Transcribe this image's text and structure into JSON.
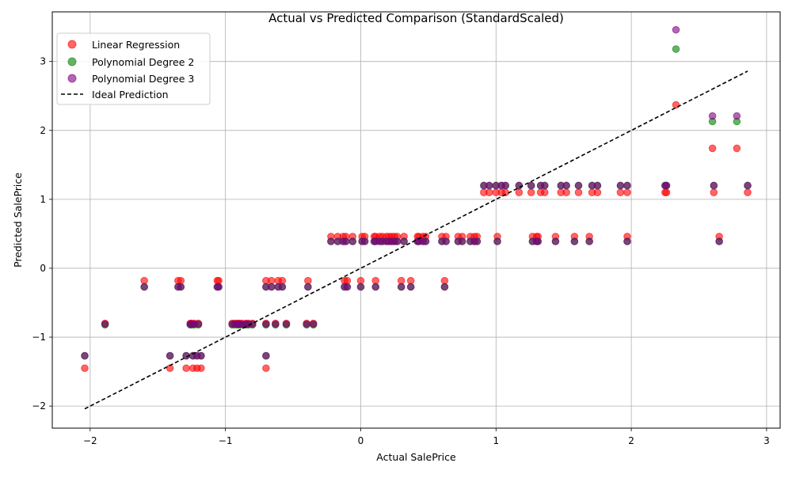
{
  "chart_data": {
    "type": "scatter",
    "title": "Actual vs Predicted Comparison (StandardScaled)",
    "xlabel": "Actual SalePrice",
    "ylabel": "Predicted SalePrice",
    "xlim": [
      -2.28,
      3.1
    ],
    "ylim": [
      -2.32,
      3.72
    ],
    "xticks": [
      -2,
      -1,
      0,
      1,
      2,
      3
    ],
    "xtick_labels": [
      "−2",
      "−1",
      "0",
      "1",
      "2",
      "3"
    ],
    "yticks": [
      -2,
      -1,
      0,
      1,
      2,
      3
    ],
    "ytick_labels": [
      "−2",
      "−1",
      "0",
      "1",
      "2",
      "3"
    ],
    "grid": true,
    "legend_position": "top-left",
    "actual_x": [
      -2.04,
      -1.89,
      -1.6,
      -1.41,
      -1.35,
      -1.33,
      -1.29,
      -1.26,
      -1.25,
      -1.24,
      -1.23,
      -1.21,
      -1.2,
      -1.18,
      -1.06,
      -1.05,
      -0.95,
      -0.93,
      -0.91,
      -0.9,
      -0.88,
      -0.85,
      -0.83,
      -0.8,
      -0.7,
      -0.7,
      -0.7,
      -0.66,
      -0.63,
      -0.61,
      -0.58,
      -0.55,
      -0.4,
      -0.39,
      -0.35,
      -0.22,
      -0.17,
      -0.13,
      -0.12,
      -0.11,
      -0.1,
      -0.06,
      0.0,
      0.01,
      0.03,
      0.1,
      0.11,
      0.11,
      0.14,
      0.16,
      0.19,
      0.21,
      0.23,
      0.25,
      0.27,
      0.3,
      0.32,
      0.37,
      0.42,
      0.43,
      0.46,
      0.48,
      0.6,
      0.62,
      0.63,
      0.72,
      0.75,
      0.81,
      0.84,
      0.86,
      0.91,
      0.95,
      1.0,
      1.01,
      1.04,
      1.07,
      1.17,
      1.26,
      1.27,
      1.3,
      1.31,
      1.33,
      1.36,
      1.44,
      1.48,
      1.52,
      1.58,
      1.61,
      1.69,
      1.71,
      1.75,
      1.92,
      1.97,
      1.97,
      2.25,
      2.26,
      2.33,
      2.6,
      2.61,
      2.65,
      2.78,
      2.86
    ],
    "series": [
      {
        "name": "Linear Regression",
        "color": "#ff0000",
        "y": [
          -1.45,
          -0.8,
          -0.18,
          -1.45,
          -0.18,
          -0.18,
          -1.45,
          -0.8,
          -0.8,
          -1.45,
          -0.8,
          -1.45,
          -0.8,
          -1.45,
          -0.18,
          -0.18,
          -0.8,
          -0.8,
          -0.8,
          -0.8,
          -0.8,
          -0.8,
          -0.8,
          -0.8,
          -1.45,
          -0.8,
          -0.18,
          -0.18,
          -0.8,
          -0.18,
          -0.18,
          -0.8,
          -0.8,
          -0.18,
          -0.8,
          0.46,
          0.46,
          0.46,
          -0.18,
          0.46,
          -0.18,
          0.46,
          -0.18,
          0.46,
          0.46,
          0.46,
          -0.18,
          0.46,
          0.46,
          0.46,
          0.46,
          0.46,
          0.46,
          0.46,
          0.46,
          -0.18,
          0.46,
          -0.18,
          0.46,
          0.46,
          0.46,
          0.46,
          0.46,
          -0.18,
          0.46,
          0.46,
          0.46,
          0.46,
          0.46,
          0.46,
          1.1,
          1.1,
          1.1,
          0.46,
          1.1,
          1.1,
          1.1,
          1.1,
          0.46,
          0.46,
          0.46,
          1.1,
          1.1,
          0.46,
          1.1,
          1.1,
          0.46,
          1.1,
          0.46,
          1.1,
          1.1,
          1.1,
          0.46,
          1.1,
          1.1,
          1.1,
          2.37,
          1.74,
          1.1,
          0.46,
          1.74,
          1.1
        ]
      },
      {
        "name": "Polynomial Degree 2",
        "color": "#008000",
        "y": [
          -1.27,
          -0.82,
          -0.27,
          -1.27,
          -0.27,
          -0.27,
          -1.27,
          -0.82,
          -0.82,
          -1.27,
          -0.82,
          -1.27,
          -0.82,
          -1.27,
          -0.27,
          -0.27,
          -0.82,
          -0.82,
          -0.82,
          -0.82,
          -0.82,
          -0.82,
          -0.82,
          -0.82,
          -1.27,
          -0.82,
          -0.27,
          -0.27,
          -0.82,
          -0.27,
          -0.27,
          -0.82,
          -0.82,
          -0.27,
          -0.82,
          0.39,
          0.39,
          0.39,
          -0.27,
          0.39,
          -0.27,
          0.39,
          -0.27,
          0.39,
          0.39,
          0.39,
          -0.27,
          0.39,
          0.39,
          0.39,
          0.39,
          0.39,
          0.39,
          0.39,
          0.39,
          -0.27,
          0.39,
          -0.27,
          0.39,
          0.39,
          0.39,
          0.39,
          0.39,
          -0.27,
          0.39,
          0.39,
          0.39,
          0.39,
          0.39,
          0.39,
          1.2,
          1.2,
          1.2,
          0.39,
          1.2,
          1.2,
          1.2,
          1.2,
          0.39,
          0.39,
          0.39,
          1.2,
          1.2,
          0.39,
          1.2,
          1.2,
          0.39,
          1.2,
          0.39,
          1.2,
          1.2,
          1.2,
          0.39,
          1.2,
          1.2,
          1.2,
          3.18,
          2.13,
          1.2,
          0.39,
          2.13,
          1.2
        ]
      },
      {
        "name": "Polynomial Degree 3",
        "color": "#800080",
        "y": [
          -1.27,
          -0.81,
          -0.27,
          -1.27,
          -0.27,
          -0.27,
          -1.27,
          -0.81,
          -0.81,
          -1.27,
          -0.81,
          -1.27,
          -0.81,
          -1.27,
          -0.27,
          -0.27,
          -0.81,
          -0.81,
          -0.81,
          -0.81,
          -0.81,
          -0.81,
          -0.81,
          -0.81,
          -1.27,
          -0.81,
          -0.27,
          -0.27,
          -0.81,
          -0.27,
          -0.27,
          -0.81,
          -0.81,
          -0.27,
          -0.81,
          0.39,
          0.39,
          0.39,
          -0.27,
          0.39,
          -0.27,
          0.39,
          -0.27,
          0.39,
          0.39,
          0.39,
          -0.27,
          0.39,
          0.39,
          0.39,
          0.39,
          0.39,
          0.39,
          0.39,
          0.39,
          -0.27,
          0.39,
          -0.27,
          0.39,
          0.39,
          0.39,
          0.39,
          0.39,
          -0.27,
          0.39,
          0.39,
          0.39,
          0.39,
          0.39,
          0.39,
          1.2,
          1.2,
          1.2,
          0.39,
          1.2,
          1.2,
          1.2,
          1.2,
          0.39,
          0.39,
          0.39,
          1.2,
          1.2,
          0.39,
          1.2,
          1.2,
          0.39,
          1.2,
          0.39,
          1.2,
          1.2,
          1.2,
          0.39,
          1.2,
          1.2,
          1.2,
          3.46,
          2.21,
          1.2,
          0.39,
          2.21,
          1.2
        ]
      }
    ],
    "ideal_line": {
      "name": "Ideal Prediction",
      "color": "#000000",
      "x": [
        -2.04,
        2.86
      ],
      "y": [
        -2.04,
        2.86
      ]
    }
  }
}
